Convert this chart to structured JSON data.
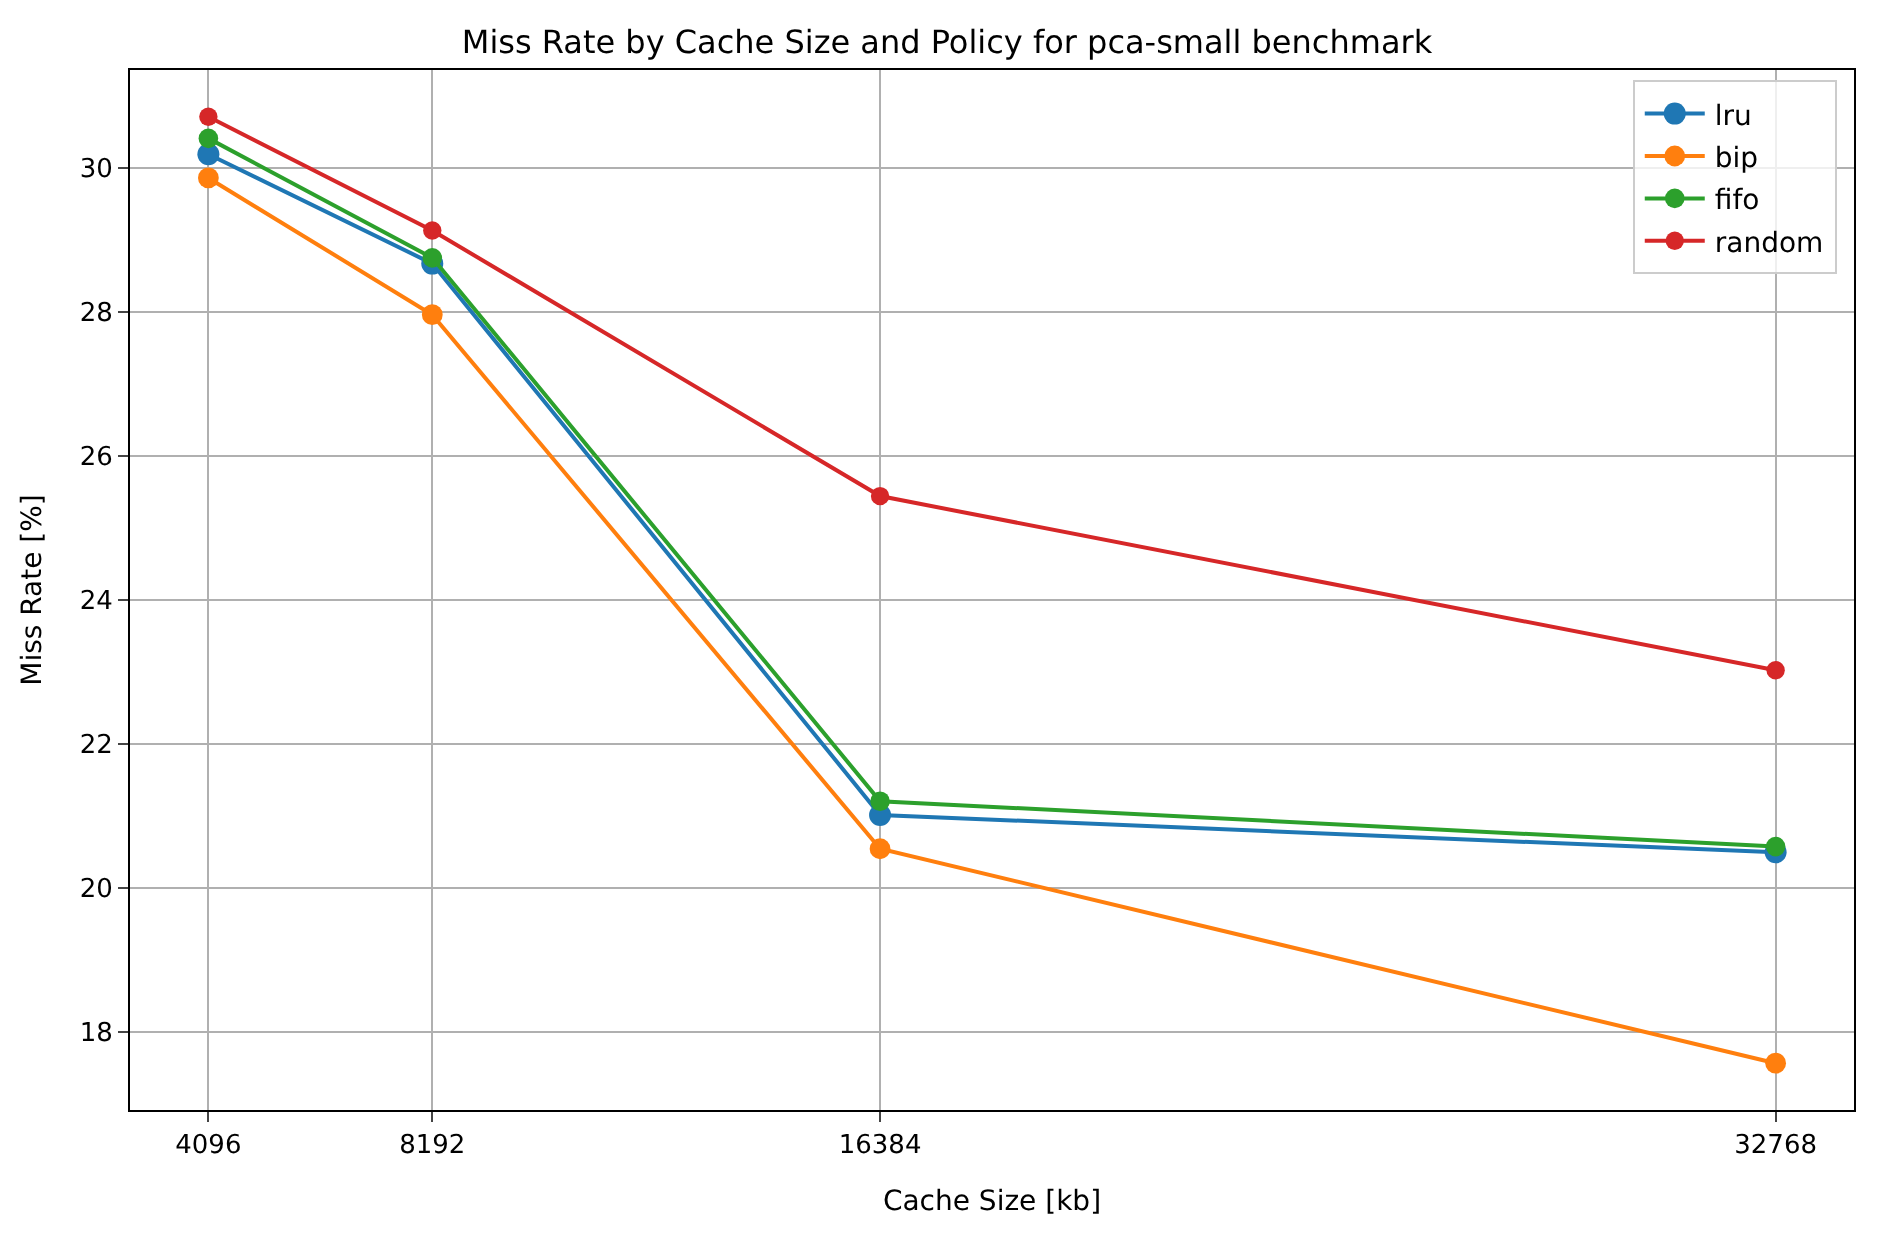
{
  "chart_data": {
    "type": "line",
    "title": "Miss Rate by Cache Size and Policy for pca-small benchmark",
    "xlabel": "Cache Size [kb]",
    "ylabel": "Miss Rate [%]",
    "x": [
      4096,
      8192,
      16384,
      32768
    ],
    "series": [
      {
        "name": "lru",
        "color": "#1f77b4",
        "values": [
          30.19,
          28.67,
          21.01,
          20.49
        ]
      },
      {
        "name": "bip",
        "color": "#ff7f0e",
        "values": [
          29.86,
          27.96,
          20.54,
          17.56
        ]
      },
      {
        "name": "fifo",
        "color": "#2ca02c",
        "values": [
          30.41,
          28.75,
          21.2,
          20.57
        ]
      },
      {
        "name": "random",
        "color": "#d62728",
        "values": [
          30.71,
          29.13,
          25.44,
          23.02
        ]
      }
    ],
    "xlim": [
      2662,
      34202
    ],
    "xticks": [
      4096,
      8192,
      16384,
      32768
    ],
    "ylim": [
      16.91,
      31.36
    ],
    "yticks": [
      18,
      20,
      22,
      24,
      26,
      28,
      30
    ],
    "grid": true,
    "legend": "top right",
    "marker": "circle",
    "line_style": "solid"
  }
}
